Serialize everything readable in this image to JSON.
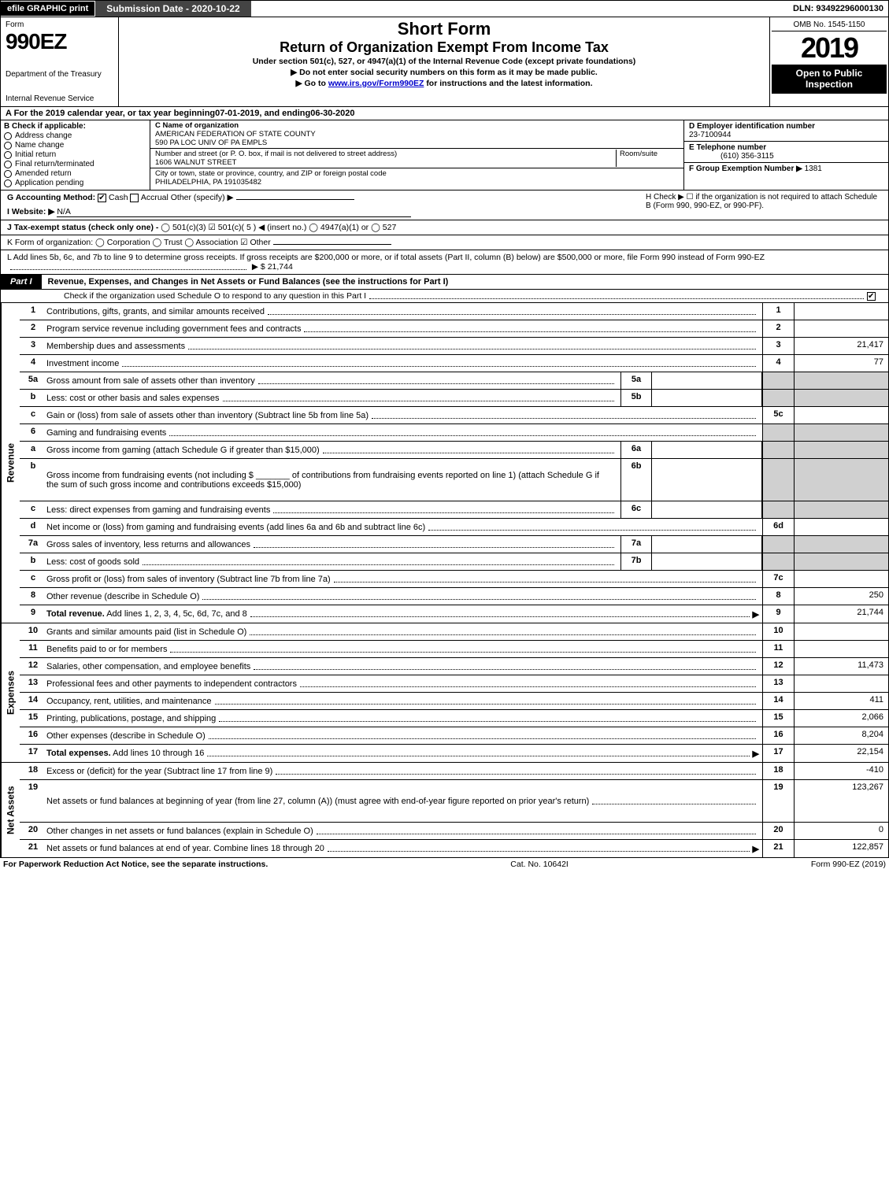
{
  "topbar": {
    "efile": "efile GRAPHIC print",
    "submission": "Submission Date - 2020-10-22",
    "dln_label": "DLN:",
    "dln": "93492296000130"
  },
  "header": {
    "form_label": "Form",
    "form_number": "990EZ",
    "department": "Department of the Treasury",
    "irs": "Internal Revenue Service",
    "title1": "Short Form",
    "title2": "Return of Organization Exempt From Income Tax",
    "subtitle": "Under section 501(c), 527, or 4947(a)(1) of the Internal Revenue Code (except private foundations)",
    "warn1": "▶ Do not enter social security numbers on this form as it may be made public.",
    "warn2_pre": "▶ Go to ",
    "warn2_link": "www.irs.gov/Form990EZ",
    "warn2_post": " for instructions and the latest information.",
    "omb": "OMB No. 1545-1150",
    "year": "2019",
    "open": "Open to Public Inspection"
  },
  "lineA": {
    "text_a": "A For the 2019 calendar year, or tax year beginning ",
    "begin": "07-01-2019",
    "mid": " , and ending ",
    "end": "06-30-2020"
  },
  "blockB": {
    "title": "B Check if applicable:",
    "items": [
      "Address change",
      "Name change",
      "Initial return",
      "Final return/terminated",
      "Amended return",
      "Application pending"
    ]
  },
  "blockC": {
    "c_label": "C Name of organization",
    "name1": "AMERICAN FEDERATION OF STATE COUNTY",
    "name2": "590 PA LOC UNIV OF PA EMPLS",
    "addr_label": "Number and street (or P. O. box, if mail is not delivered to street address)",
    "room_label": "Room/suite",
    "street": "1606 WALNUT STREET",
    "city_label": "City or town, state or province, country, and ZIP or foreign postal code",
    "city": "PHILADELPHIA, PA  191035482"
  },
  "blockDEF": {
    "d_label": "D Employer identification number",
    "d_val": "23-7100944",
    "e_label": "E Telephone number",
    "e_val": "(610) 356-3115",
    "f_label": "F Group Exemption Number ▶",
    "f_val": "1381"
  },
  "sectionG": {
    "g": "G Accounting Method:",
    "cash": "Cash",
    "accrual": "Accrual",
    "other": "Other (specify) ▶",
    "i": "I Website: ▶",
    "i_val": "N/A",
    "h_text": "H Check ▶  ☐  if the organization is not required to attach Schedule B (Form 990, 990-EZ, or 990-PF)."
  },
  "sectionJ": {
    "j": "J Tax-exempt status (check only one) - ",
    "opts": "◯ 501(c)(3)  ☑ 501(c)( 5 ) ◀ (insert no.)  ◯ 4947(a)(1) or  ◯ 527"
  },
  "sectionK": {
    "k": "K Form of organization:  ◯ Corporation  ◯ Trust  ◯ Association  ☑ Other",
    "underline": ""
  },
  "sectionL": {
    "l1": "L Add lines 5b, 6c, and 7b to line 9 to determine gross receipts. If gross receipts are $200,000 or more, or if total assets (Part II, column (B) below) are $500,000 or more, file Form 990 instead of Form 990-EZ",
    "l_amount_label": "▶ $",
    "l_amount": "21,744"
  },
  "part1": {
    "label": "Part I",
    "title": "Revenue, Expenses, and Changes in Net Assets or Fund Balances (see the instructions for Part I)",
    "chk_text": "Check if the organization used Schedule O to respond to any question in this Part I"
  },
  "sideLabels": {
    "revenue": "Revenue",
    "expenses": "Expenses",
    "netassets": "Net Assets"
  },
  "revenueLines": [
    {
      "num": "1",
      "desc": "Contributions, gifts, grants, and similar amounts received",
      "rnum": "1",
      "rval": ""
    },
    {
      "num": "2",
      "desc": "Program service revenue including government fees and contracts",
      "rnum": "2",
      "rval": ""
    },
    {
      "num": "3",
      "desc": "Membership dues and assessments",
      "rnum": "3",
      "rval": "21,417"
    },
    {
      "num": "4",
      "desc": "Investment income",
      "rnum": "4",
      "rval": "77"
    },
    {
      "num": "5a",
      "desc": "Gross amount from sale of assets other than inventory",
      "mid": "5a",
      "midval": "",
      "shade": true
    },
    {
      "num": "b",
      "desc": "Less: cost or other basis and sales expenses",
      "mid": "5b",
      "midval": "",
      "shade": true
    },
    {
      "num": "c",
      "desc": "Gain or (loss) from sale of assets other than inventory (Subtract line 5b from line 5a)",
      "rnum": "5c",
      "rval": ""
    },
    {
      "num": "6",
      "desc": "Gaming and fundraising events",
      "shadeOnly": true
    },
    {
      "num": "a",
      "desc": "Gross income from gaming (attach Schedule G if greater than $15,000)",
      "mid": "6a",
      "midval": "",
      "shade": true
    },
    {
      "num": "b",
      "desc": "Gross income from fundraising events (not including $ _______ of contributions from fundraising events reported on line 1) (attach Schedule G if the sum of such gross income and contributions exceeds $15,000)",
      "mid": "6b",
      "midval": "",
      "shade": true,
      "tall": true
    },
    {
      "num": "c",
      "desc": "Less: direct expenses from gaming and fundraising events",
      "mid": "6c",
      "midval": "",
      "shade": true
    },
    {
      "num": "d",
      "desc": "Net income or (loss) from gaming and fundraising events (add lines 6a and 6b and subtract line 6c)",
      "rnum": "6d",
      "rval": ""
    },
    {
      "num": "7a",
      "desc": "Gross sales of inventory, less returns and allowances",
      "mid": "7a",
      "midval": "",
      "shade": true
    },
    {
      "num": "b",
      "desc": "Less: cost of goods sold",
      "mid": "7b",
      "midval": "",
      "shade": true
    },
    {
      "num": "c",
      "desc": "Gross profit or (loss) from sales of inventory (Subtract line 7b from line 7a)",
      "rnum": "7c",
      "rval": ""
    },
    {
      "num": "8",
      "desc": "Other revenue (describe in Schedule O)",
      "rnum": "8",
      "rval": "250"
    },
    {
      "num": "9",
      "desc": "Total revenue. Add lines 1, 2, 3, 4, 5c, 6d, 7c, and 8",
      "rnum": "9",
      "rval": "21,744",
      "bold": true,
      "arrow": true
    }
  ],
  "expenseLines": [
    {
      "num": "10",
      "desc": "Grants and similar amounts paid (list in Schedule O)",
      "rnum": "10",
      "rval": ""
    },
    {
      "num": "11",
      "desc": "Benefits paid to or for members",
      "rnum": "11",
      "rval": ""
    },
    {
      "num": "12",
      "desc": "Salaries, other compensation, and employee benefits",
      "rnum": "12",
      "rval": "11,473"
    },
    {
      "num": "13",
      "desc": "Professional fees and other payments to independent contractors",
      "rnum": "13",
      "rval": ""
    },
    {
      "num": "14",
      "desc": "Occupancy, rent, utilities, and maintenance",
      "rnum": "14",
      "rval": "411"
    },
    {
      "num": "15",
      "desc": "Printing, publications, postage, and shipping",
      "rnum": "15",
      "rval": "2,066"
    },
    {
      "num": "16",
      "desc": "Other expenses (describe in Schedule O)",
      "rnum": "16",
      "rval": "8,204"
    },
    {
      "num": "17",
      "desc": "Total expenses. Add lines 10 through 16",
      "rnum": "17",
      "rval": "22,154",
      "bold": true,
      "arrow": true
    }
  ],
  "netLines": [
    {
      "num": "18",
      "desc": "Excess or (deficit) for the year (Subtract line 17 from line 9)",
      "rnum": "18",
      "rval": "-410"
    },
    {
      "num": "19",
      "desc": "Net assets or fund balances at beginning of year (from line 27, column (A)) (must agree with end-of-year figure reported on prior year's return)",
      "rnum": "19",
      "rval": "123,267",
      "tall": true,
      "shadeTop": true
    },
    {
      "num": "20",
      "desc": "Other changes in net assets or fund balances (explain in Schedule O)",
      "rnum": "20",
      "rval": "0"
    },
    {
      "num": "21",
      "desc": "Net assets or fund balances at end of year. Combine lines 18 through 20",
      "rnum": "21",
      "rval": "122,857",
      "arrow": true
    }
  ],
  "footer": {
    "left": "For Paperwork Reduction Act Notice, see the separate instructions.",
    "center": "Cat. No. 10642I",
    "right": "Form 990-EZ (2019)"
  }
}
